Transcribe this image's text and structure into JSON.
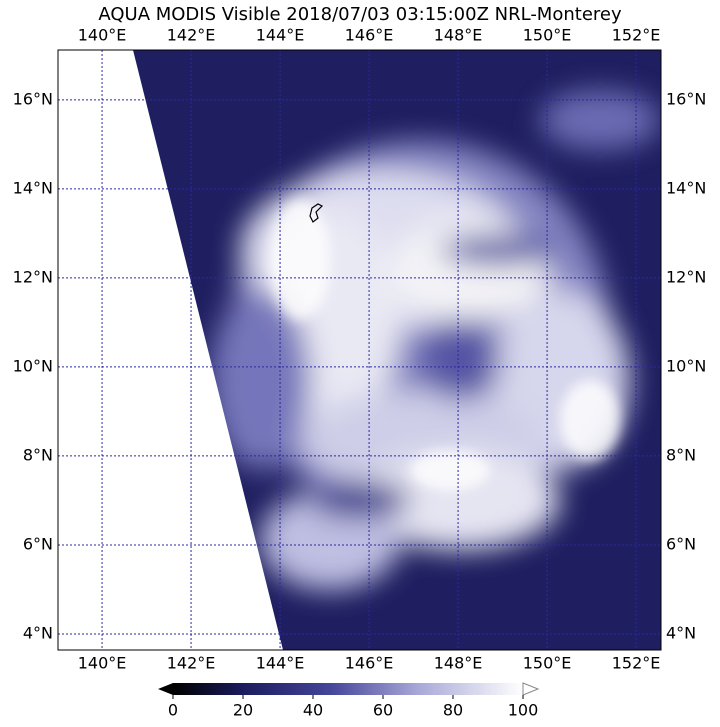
{
  "map": {
    "title": "AQUA MODIS Visible 2018/07/03 03:15:00Z NRL-Monterey",
    "lon_range": [
      139.01,
      152.56
    ],
    "lat_range": [
      3.64,
      17.12
    ],
    "lon_ticks": [
      {
        "value": 140,
        "label": "140°E"
      },
      {
        "value": 142,
        "label": "142°E"
      },
      {
        "value": 144,
        "label": "144°E"
      },
      {
        "value": 146,
        "label": "146°E"
      },
      {
        "value": 148,
        "label": "148°E"
      },
      {
        "value": 150,
        "label": "150°E"
      },
      {
        "value": 152,
        "label": "152°E"
      }
    ],
    "lat_ticks": [
      {
        "value": 4,
        "label": "4°N"
      },
      {
        "value": 6,
        "label": "6°N"
      },
      {
        "value": 8,
        "label": "8°N"
      },
      {
        "value": 10,
        "label": "10°N"
      },
      {
        "value": 12,
        "label": "12°N"
      },
      {
        "value": 14,
        "label": "14°N"
      },
      {
        "value": 16,
        "label": "16°N"
      }
    ],
    "colorbar": {
      "range": [
        0,
        100
      ],
      "ticks": [
        0,
        20,
        40,
        60,
        80,
        100
      ]
    }
  }
}
